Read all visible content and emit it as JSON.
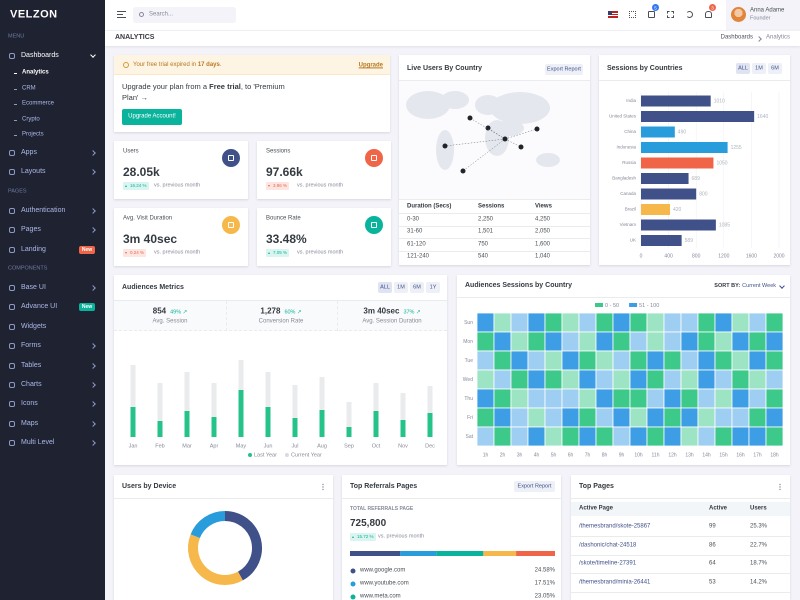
{
  "sidebar": {
    "logo": "VELZON",
    "groups": [
      {
        "title": "MENU",
        "items": [
          {
            "label": "Dashboards",
            "children": [
              "Analytics",
              "CRM",
              "Ecommerce",
              "Crypto",
              "Projects"
            ]
          },
          {
            "label": "Apps",
            "expandable": true
          },
          {
            "label": "Layouts",
            "expandable": true
          }
        ]
      },
      {
        "title": "PAGES",
        "items": [
          {
            "label": "Authentication",
            "expandable": true
          },
          {
            "label": "Pages",
            "expandable": true
          },
          {
            "label": "Landing",
            "badge": "New",
            "badge_color": "#f06548"
          }
        ]
      },
      {
        "title": "COMPONENTS",
        "items": [
          {
            "label": "Base UI",
            "expandable": true
          },
          {
            "label": "Advance UI",
            "badge": "New",
            "badge_color": "#0ab39c"
          },
          {
            "label": "Widgets"
          },
          {
            "label": "Forms",
            "expandable": true
          },
          {
            "label": "Tables",
            "expandable": true
          },
          {
            "label": "Charts",
            "expandable": true
          },
          {
            "label": "Icons",
            "expandable": true
          },
          {
            "label": "Maps",
            "expandable": true
          },
          {
            "label": "Multi Level",
            "expandable": true
          }
        ]
      }
    ]
  },
  "topbar": {
    "search_placeholder": "Search...",
    "cart_badge": 5,
    "notification_badge": 3,
    "user_name": "Anna Adame",
    "user_role": "Founder"
  },
  "breadcrumb": {
    "title": "ANALYTICS",
    "path": [
      "Dashboards",
      "Analytics"
    ]
  },
  "trial_alert": {
    "message": [
      "Your free trial expired in ",
      "17 days",
      "."
    ],
    "link": "Upgrade",
    "body": [
      "Upgrade your plan from a ",
      "Free trial",
      ", to 'Premium Plan' →"
    ],
    "button": "Upgrade Account!"
  },
  "stat_cards": [
    {
      "label": "Users",
      "value": "28.05k",
      "change": "16.24 %",
      "direction": "up",
      "note": "vs. previous month",
      "icon_color": "#405189"
    },
    {
      "label": "Sessions",
      "value": "97.66k",
      "change": "3.96 %",
      "direction": "down",
      "note": "vs. previous month",
      "icon_color": "#f06548"
    },
    {
      "label": "Avg. Visit Duration",
      "value": "3m 40sec",
      "change": "0.24 %",
      "direction": "down",
      "note": "vs. previous month",
      "icon_color": "#f7b84b"
    },
    {
      "label": "Bounce Rate",
      "value": "33.48%",
      "change": "7.05 %",
      "direction": "up",
      "note": "vs. previous month",
      "icon_color": "#0ab39c"
    }
  ],
  "live_users": {
    "title": "Live Users By Country",
    "button": "Export Report",
    "table": {
      "headers": [
        "Duration (Secs)",
        "Sessions",
        "Views"
      ],
      "rows": [
        [
          "0-30",
          "2,250",
          "4,250"
        ],
        [
          "31-60",
          "1,501",
          "2,050"
        ],
        [
          "61-120",
          "750",
          "1,600"
        ],
        [
          "121-240",
          "540",
          "1,040"
        ]
      ]
    }
  },
  "sessions_by_countries": {
    "title": "Sessions by Countries",
    "buttons": [
      "ALL",
      "1M",
      "6M"
    ],
    "chart": {
      "type": "bar",
      "orientation": "horizontal",
      "categories": [
        "India",
        "United States",
        "China",
        "Indonesia",
        "Russia",
        "Bangladesh",
        "Canada",
        "Brazil",
        "Vietnam",
        "UK"
      ],
      "values": [
        1010,
        1640,
        490,
        1255,
        1050,
        689,
        800,
        420,
        1085,
        589
      ],
      "colors": [
        "#405189",
        "#405189",
        "#299cdb",
        "#299cdb",
        "#f06548",
        "#405189",
        "#405189",
        "#f7b84b",
        "#405189",
        "#405189"
      ],
      "xlim": [
        0,
        2000
      ],
      "xticks": [
        0,
        400,
        800,
        1200,
        1600,
        2000
      ],
      "grid": true
    }
  },
  "audiences_metrics": {
    "title": "Audiences Metrics",
    "buttons": [
      "ALL",
      "1M",
      "6M",
      "1Y"
    ],
    "stats": [
      {
        "value": "854",
        "change": "49% ↗",
        "label": "Avg. Session"
      },
      {
        "value": "1,278",
        "change": "60% ↗",
        "label": "Conversion Rate"
      },
      {
        "value": "3m 40sec",
        "change": "37% ↗",
        "label": "Avg. Session Duration"
      }
    ],
    "chart": {
      "type": "bar",
      "stacked": true,
      "categories": [
        "Jan",
        "Feb",
        "Mar",
        "Apr",
        "May",
        "Jun",
        "Jul",
        "Aug",
        "Sep",
        "Oct",
        "Nov",
        "Dec"
      ],
      "series": [
        {
          "name": "Last Year",
          "color": "#25c38a",
          "values": [
            30,
            16,
            26,
            20,
            47,
            30,
            19,
            27,
            10,
            26,
            17,
            24
          ]
        },
        {
          "name": "Current Year",
          "color": "#e9ebec",
          "values": [
            42,
            38,
            39,
            34,
            30,
            35,
            33,
            33,
            25,
            28,
            27,
            27
          ]
        }
      ],
      "ylim": [
        0,
        85
      ]
    }
  },
  "audiences_sessions": {
    "title": "Audiences Sessions by Country",
    "sort_label": "SORT BY:",
    "sort_value": "Current Week",
    "chart": {
      "type": "heatmap",
      "legend": [
        {
          "label": "0 - 50",
          "from": 0,
          "to": 50,
          "color": "#3cc98a"
        },
        {
          "label": "51 - 100",
          "from": 51,
          "to": 100,
          "color": "#3d9ee6"
        }
      ],
      "rows": [
        "Sun",
        "Mon",
        "Tue",
        "Wed",
        "Thu",
        "Fri",
        "Sat"
      ],
      "columns": [
        "1h",
        "2h",
        "3h",
        "4h",
        "5h",
        "6h",
        "7h",
        "8h",
        "9h",
        "10h",
        "11h",
        "12h",
        "13h",
        "14h",
        "15h",
        "16h",
        "17h",
        "18h"
      ],
      "values": [
        [
          82,
          15,
          72,
          88,
          40,
          20,
          60,
          35,
          90,
          45,
          10,
          75,
          55,
          30,
          95,
          22,
          65,
          48
        ],
        [
          30,
          78,
          12,
          45,
          92,
          66,
          25,
          85,
          38,
          70,
          18,
          58,
          88,
          42,
          8,
          76,
          33,
          90
        ],
        [
          62,
          28,
          95,
          55,
          18,
          82,
          44,
          12,
          70,
          36,
          92,
          26,
          64,
          80,
          48,
          14,
          86,
          40
        ],
        [
          15,
          68,
          40,
          80,
          33,
          10,
          90,
          56,
          24,
          85,
          48,
          72,
          20,
          96,
          60,
          38,
          12,
          74
        ],
        [
          88,
          42,
          22,
          65,
          75,
          52,
          16,
          94,
          46,
          28,
          66,
          90,
          34,
          54,
          22,
          84,
          58,
          26
        ],
        [
          45,
          92,
          70,
          18,
          56,
          88,
          34,
          62,
          80,
          14,
          76,
          40,
          96,
          20,
          70,
          52,
          30,
          82
        ],
        [
          72,
          36,
          58,
          94,
          24,
          46,
          80,
          28,
          60,
          98,
          32,
          84,
          16,
          66,
          44,
          92,
          76,
          38
        ]
      ]
    }
  },
  "users_by_device": {
    "title": "Users by Device",
    "chart": {
      "type": "donut",
      "values": [
        42,
        39,
        19
      ],
      "colors": [
        "#405189",
        "#f7b84b",
        "#299cdb"
      ]
    }
  },
  "top_referrals": {
    "title": "Top Referrals Pages",
    "button": "Export Report",
    "total_label": "TOTAL REFERRALS PAGE",
    "total": "725,800",
    "change": "15.72 %",
    "note": "vs. previous month",
    "items": [
      {
        "label": "www.google.com",
        "value": 24.58,
        "value_label": "24.58%",
        "color": "#405189"
      },
      {
        "label": "www.youtube.com",
        "value": 17.51,
        "value_label": "17.51%",
        "color": "#299cdb"
      },
      {
        "label": "www.meta.com",
        "value": 23.05,
        "value_label": "23.05%",
        "color": "#0ab39c"
      }
    ],
    "other_segments": [
      {
        "value": 16,
        "color": "#f7b84b"
      },
      {
        "value": 19,
        "color": "#f06548"
      }
    ]
  },
  "top_pages": {
    "title": "Top Pages",
    "headers": [
      "Active Page",
      "Active",
      "Users"
    ],
    "rows": [
      [
        "/themesbrand/skote-25867",
        99,
        "25.3%"
      ],
      [
        "/dashonic/chat-24518",
        86,
        "22.7%"
      ],
      [
        "/skote/timeline-27391",
        64,
        "18.7%"
      ],
      [
        "/themesbrand/minia-26441",
        53,
        "14.2%"
      ]
    ]
  }
}
